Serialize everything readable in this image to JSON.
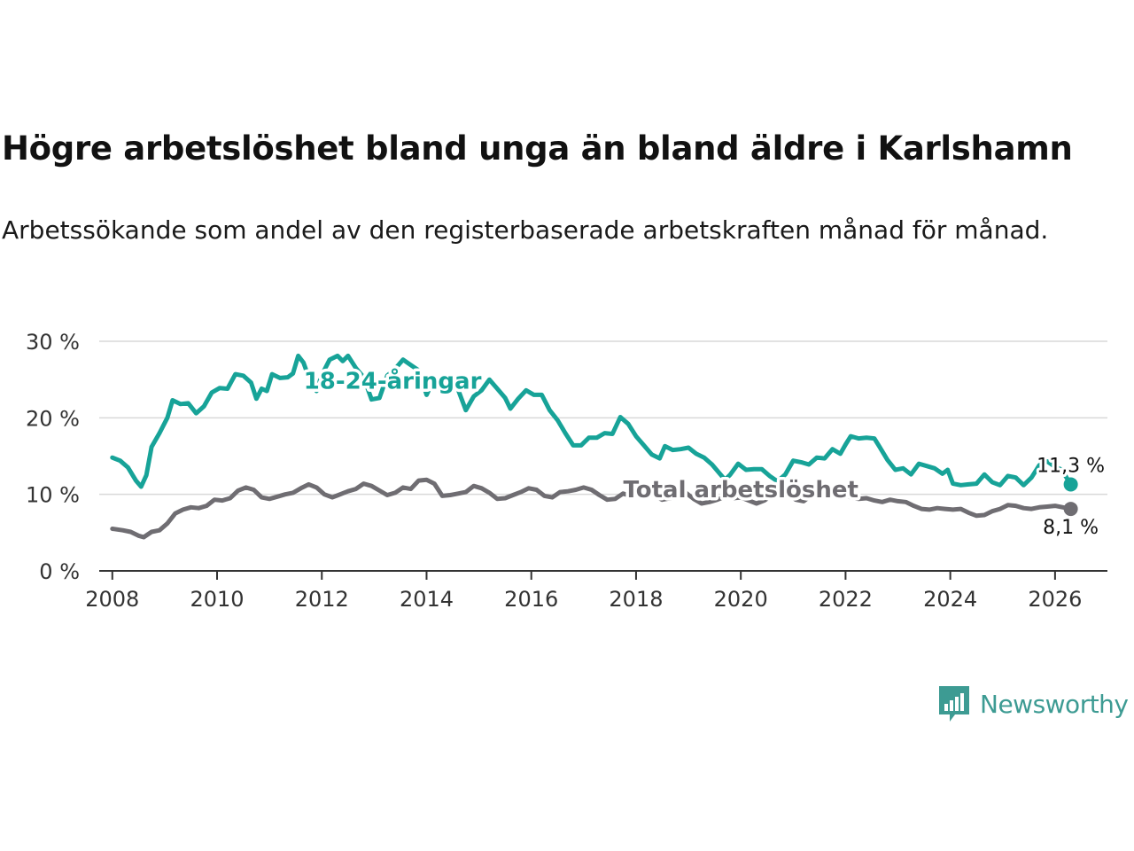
{
  "title": "Högre arbetslöshet bland unga än bland äldre i Karlshamn",
  "subtitle": "Arbetssökande som andel av den registerbaserade arbetskraften månad för månad.",
  "brand": {
    "name": "Newsworthy",
    "color": "#3d9b93"
  },
  "chart_data": {
    "type": "line",
    "title": "Högre arbetslöshet bland unga än bland äldre i Karlshamn",
    "xlabel": "",
    "ylabel": "",
    "xlim": [
      2007.75,
      2027
    ],
    "ylim": [
      0,
      30
    ],
    "y_ticks": [
      0,
      10,
      20,
      30
    ],
    "y_tick_labels": [
      "0 %",
      "10 %",
      "20 %",
      "30 %"
    ],
    "x_ticks": [
      2008,
      2010,
      2012,
      2014,
      2016,
      2018,
      2020,
      2022,
      2024,
      2026
    ],
    "x_tick_labels": [
      "2008",
      "2010",
      "2012",
      "2014",
      "2016",
      "2018",
      "2020",
      "2022",
      "2024",
      "2026"
    ],
    "grid": true,
    "series": [
      {
        "name": "18-24-åringar",
        "label": "18-24-åringar",
        "color": "#17a398",
        "end_label": "11,3 %",
        "points": [
          [
            2008.0,
            14.8
          ],
          [
            2008.15,
            14.4
          ],
          [
            2008.3,
            13.5
          ],
          [
            2008.45,
            11.8
          ],
          [
            2008.55,
            11.0
          ],
          [
            2008.65,
            12.5
          ],
          [
            2008.75,
            16.2
          ],
          [
            2008.9,
            18.0
          ],
          [
            2009.05,
            20.0
          ],
          [
            2009.15,
            22.3
          ],
          [
            2009.3,
            21.8
          ],
          [
            2009.45,
            21.9
          ],
          [
            2009.6,
            20.6
          ],
          [
            2009.75,
            21.5
          ],
          [
            2009.9,
            23.3
          ],
          [
            2010.05,
            23.9
          ],
          [
            2010.2,
            23.8
          ],
          [
            2010.35,
            25.7
          ],
          [
            2010.5,
            25.5
          ],
          [
            2010.65,
            24.6
          ],
          [
            2010.75,
            22.5
          ],
          [
            2010.85,
            23.8
          ],
          [
            2010.95,
            23.5
          ],
          [
            2011.05,
            25.7
          ],
          [
            2011.2,
            25.2
          ],
          [
            2011.35,
            25.3
          ],
          [
            2011.45,
            25.8
          ],
          [
            2011.55,
            28.1
          ],
          [
            2011.65,
            27.2
          ],
          [
            2011.75,
            25.3
          ],
          [
            2011.9,
            23.5
          ],
          [
            2012.0,
            25.6
          ],
          [
            2012.15,
            27.6
          ],
          [
            2012.3,
            28.1
          ],
          [
            2012.4,
            27.4
          ],
          [
            2012.5,
            28.1
          ],
          [
            2012.65,
            26.5
          ],
          [
            2012.8,
            25.3
          ],
          [
            2012.95,
            22.4
          ],
          [
            2013.1,
            22.6
          ],
          [
            2013.25,
            25.5
          ],
          [
            2013.4,
            26.4
          ],
          [
            2013.55,
            27.6
          ],
          [
            2013.7,
            26.9
          ],
          [
            2013.85,
            26.2
          ],
          [
            2014.0,
            23.0
          ],
          [
            2014.15,
            25.2
          ],
          [
            2014.3,
            24.6
          ],
          [
            2014.45,
            25.0
          ],
          [
            2014.6,
            23.7
          ],
          [
            2014.75,
            21.0
          ],
          [
            2014.9,
            22.8
          ],
          [
            2015.05,
            23.6
          ],
          [
            2015.2,
            25.0
          ],
          [
            2015.35,
            23.8
          ],
          [
            2015.5,
            22.6
          ],
          [
            2015.6,
            21.2
          ],
          [
            2015.75,
            22.5
          ],
          [
            2015.9,
            23.6
          ],
          [
            2016.05,
            23.0
          ],
          [
            2016.2,
            23.0
          ],
          [
            2016.35,
            21.0
          ],
          [
            2016.5,
            19.7
          ],
          [
            2016.65,
            18.0
          ],
          [
            2016.8,
            16.4
          ],
          [
            2016.95,
            16.4
          ],
          [
            2017.1,
            17.4
          ],
          [
            2017.25,
            17.4
          ],
          [
            2017.4,
            18.0
          ],
          [
            2017.55,
            17.9
          ],
          [
            2017.7,
            20.1
          ],
          [
            2017.85,
            19.2
          ],
          [
            2018.0,
            17.6
          ],
          [
            2018.15,
            16.4
          ],
          [
            2018.3,
            15.2
          ],
          [
            2018.45,
            14.7
          ],
          [
            2018.55,
            16.3
          ],
          [
            2018.7,
            15.8
          ],
          [
            2018.85,
            15.9
          ],
          [
            2019.0,
            16.1
          ],
          [
            2019.15,
            15.3
          ],
          [
            2019.3,
            14.8
          ],
          [
            2019.45,
            13.9
          ],
          [
            2019.6,
            12.7
          ],
          [
            2019.7,
            11.9
          ],
          [
            2019.8,
            12.6
          ],
          [
            2019.95,
            14.0
          ],
          [
            2020.1,
            13.2
          ],
          [
            2020.25,
            13.3
          ],
          [
            2020.4,
            13.3
          ],
          [
            2020.55,
            12.4
          ],
          [
            2020.7,
            11.7
          ],
          [
            2020.85,
            12.6
          ],
          [
            2021.0,
            14.4
          ],
          [
            2021.15,
            14.2
          ],
          [
            2021.3,
            13.9
          ],
          [
            2021.45,
            14.8
          ],
          [
            2021.6,
            14.7
          ],
          [
            2021.75,
            15.9
          ],
          [
            2021.9,
            15.3
          ],
          [
            2022.0,
            16.5
          ],
          [
            2022.1,
            17.6
          ],
          [
            2022.25,
            17.3
          ],
          [
            2022.4,
            17.4
          ],
          [
            2022.55,
            17.3
          ],
          [
            2022.65,
            16.2
          ],
          [
            2022.8,
            14.5
          ],
          [
            2022.95,
            13.2
          ],
          [
            2023.1,
            13.4
          ],
          [
            2023.25,
            12.6
          ],
          [
            2023.4,
            14.0
          ],
          [
            2023.55,
            13.7
          ],
          [
            2023.7,
            13.4
          ],
          [
            2023.85,
            12.7
          ],
          [
            2023.95,
            13.2
          ],
          [
            2024.05,
            11.4
          ],
          [
            2024.2,
            11.2
          ],
          [
            2024.35,
            11.3
          ],
          [
            2024.5,
            11.4
          ],
          [
            2024.65,
            12.6
          ],
          [
            2024.8,
            11.6
          ],
          [
            2024.95,
            11.2
          ],
          [
            2025.1,
            12.4
          ],
          [
            2025.25,
            12.2
          ],
          [
            2025.4,
            11.2
          ],
          [
            2025.55,
            12.2
          ],
          [
            2025.7,
            13.8
          ],
          [
            2025.85,
            14.3
          ],
          [
            2026.0,
            13.6
          ],
          [
            2026.1,
            13.3
          ],
          [
            2026.2,
            12.4
          ],
          [
            2026.3,
            11.3
          ]
        ]
      },
      {
        "name": "Total arbetslöshet",
        "label": "Total arbetslöshet",
        "color": "#6f6d72",
        "end_label": "8,1 %",
        "points": [
          [
            2008.0,
            5.5
          ],
          [
            2008.2,
            5.3
          ],
          [
            2008.35,
            5.1
          ],
          [
            2008.5,
            4.6
          ],
          [
            2008.6,
            4.4
          ],
          [
            2008.75,
            5.1
          ],
          [
            2008.9,
            5.3
          ],
          [
            2009.05,
            6.2
          ],
          [
            2009.2,
            7.5
          ],
          [
            2009.35,
            8.0
          ],
          [
            2009.5,
            8.3
          ],
          [
            2009.65,
            8.2
          ],
          [
            2009.8,
            8.5
          ],
          [
            2009.95,
            9.3
          ],
          [
            2010.1,
            9.2
          ],
          [
            2010.25,
            9.5
          ],
          [
            2010.4,
            10.5
          ],
          [
            2010.55,
            10.9
          ],
          [
            2010.7,
            10.6
          ],
          [
            2010.85,
            9.6
          ],
          [
            2011.0,
            9.4
          ],
          [
            2011.15,
            9.7
          ],
          [
            2011.3,
            10.0
          ],
          [
            2011.45,
            10.2
          ],
          [
            2011.6,
            10.8
          ],
          [
            2011.75,
            11.3
          ],
          [
            2011.9,
            10.9
          ],
          [
            2012.05,
            10.0
          ],
          [
            2012.2,
            9.6
          ],
          [
            2012.35,
            10.0
          ],
          [
            2012.5,
            10.4
          ],
          [
            2012.65,
            10.7
          ],
          [
            2012.8,
            11.4
          ],
          [
            2012.95,
            11.1
          ],
          [
            2013.1,
            10.5
          ],
          [
            2013.25,
            9.9
          ],
          [
            2013.4,
            10.2
          ],
          [
            2013.55,
            10.9
          ],
          [
            2013.7,
            10.7
          ],
          [
            2013.85,
            11.8
          ],
          [
            2014.0,
            11.9
          ],
          [
            2014.15,
            11.4
          ],
          [
            2014.3,
            9.8
          ],
          [
            2014.45,
            9.9
          ],
          [
            2014.6,
            10.1
          ],
          [
            2014.75,
            10.3
          ],
          [
            2014.9,
            11.1
          ],
          [
            2015.05,
            10.8
          ],
          [
            2015.2,
            10.2
          ],
          [
            2015.35,
            9.4
          ],
          [
            2015.5,
            9.5
          ],
          [
            2015.65,
            9.9
          ],
          [
            2015.8,
            10.3
          ],
          [
            2015.95,
            10.8
          ],
          [
            2016.1,
            10.6
          ],
          [
            2016.25,
            9.8
          ],
          [
            2016.4,
            9.6
          ],
          [
            2016.55,
            10.3
          ],
          [
            2016.7,
            10.4
          ],
          [
            2016.85,
            10.6
          ],
          [
            2017.0,
            10.9
          ],
          [
            2017.15,
            10.6
          ],
          [
            2017.3,
            9.9
          ],
          [
            2017.45,
            9.3
          ],
          [
            2017.6,
            9.4
          ],
          [
            2017.75,
            10.1
          ],
          [
            2017.9,
            9.8
          ],
          [
            2018.05,
            10.3
          ],
          [
            2018.2,
            10.2
          ],
          [
            2018.35,
            9.8
          ],
          [
            2018.5,
            9.3
          ],
          [
            2018.65,
            9.5
          ],
          [
            2018.8,
            10.3
          ],
          [
            2018.95,
            10.2
          ],
          [
            2019.1,
            9.4
          ],
          [
            2019.25,
            8.8
          ],
          [
            2019.4,
            9.0
          ],
          [
            2019.55,
            9.3
          ],
          [
            2019.7,
            9.7
          ],
          [
            2019.85,
            9.5
          ],
          [
            2020.0,
            9.6
          ],
          [
            2020.15,
            9.2
          ],
          [
            2020.3,
            8.8
          ],
          [
            2020.45,
            9.2
          ],
          [
            2020.6,
            9.9
          ],
          [
            2020.75,
            10.3
          ],
          [
            2020.9,
            10.0
          ],
          [
            2021.05,
            9.3
          ],
          [
            2021.2,
            9.1
          ],
          [
            2021.35,
            9.9
          ],
          [
            2021.5,
            10.2
          ],
          [
            2021.65,
            10.2
          ],
          [
            2021.8,
            10.1
          ],
          [
            2021.95,
            10.2
          ],
          [
            2022.1,
            9.6
          ],
          [
            2022.25,
            9.4
          ],
          [
            2022.4,
            9.5
          ],
          [
            2022.55,
            9.2
          ],
          [
            2022.7,
            9.0
          ],
          [
            2022.85,
            9.3
          ],
          [
            2023.0,
            9.1
          ],
          [
            2023.15,
            9.0
          ],
          [
            2023.3,
            8.5
          ],
          [
            2023.45,
            8.1
          ],
          [
            2023.6,
            8.0
          ],
          [
            2023.75,
            8.2
          ],
          [
            2023.9,
            8.1
          ],
          [
            2024.05,
            8.0
          ],
          [
            2024.2,
            8.1
          ],
          [
            2024.35,
            7.6
          ],
          [
            2024.5,
            7.2
          ],
          [
            2024.65,
            7.3
          ],
          [
            2024.8,
            7.8
          ],
          [
            2024.95,
            8.1
          ],
          [
            2025.1,
            8.6
          ],
          [
            2025.25,
            8.5
          ],
          [
            2025.4,
            8.2
          ],
          [
            2025.55,
            8.1
          ],
          [
            2025.7,
            8.3
          ],
          [
            2025.85,
            8.4
          ],
          [
            2026.0,
            8.5
          ],
          [
            2026.15,
            8.3
          ],
          [
            2026.3,
            8.1
          ]
        ]
      }
    ]
  }
}
